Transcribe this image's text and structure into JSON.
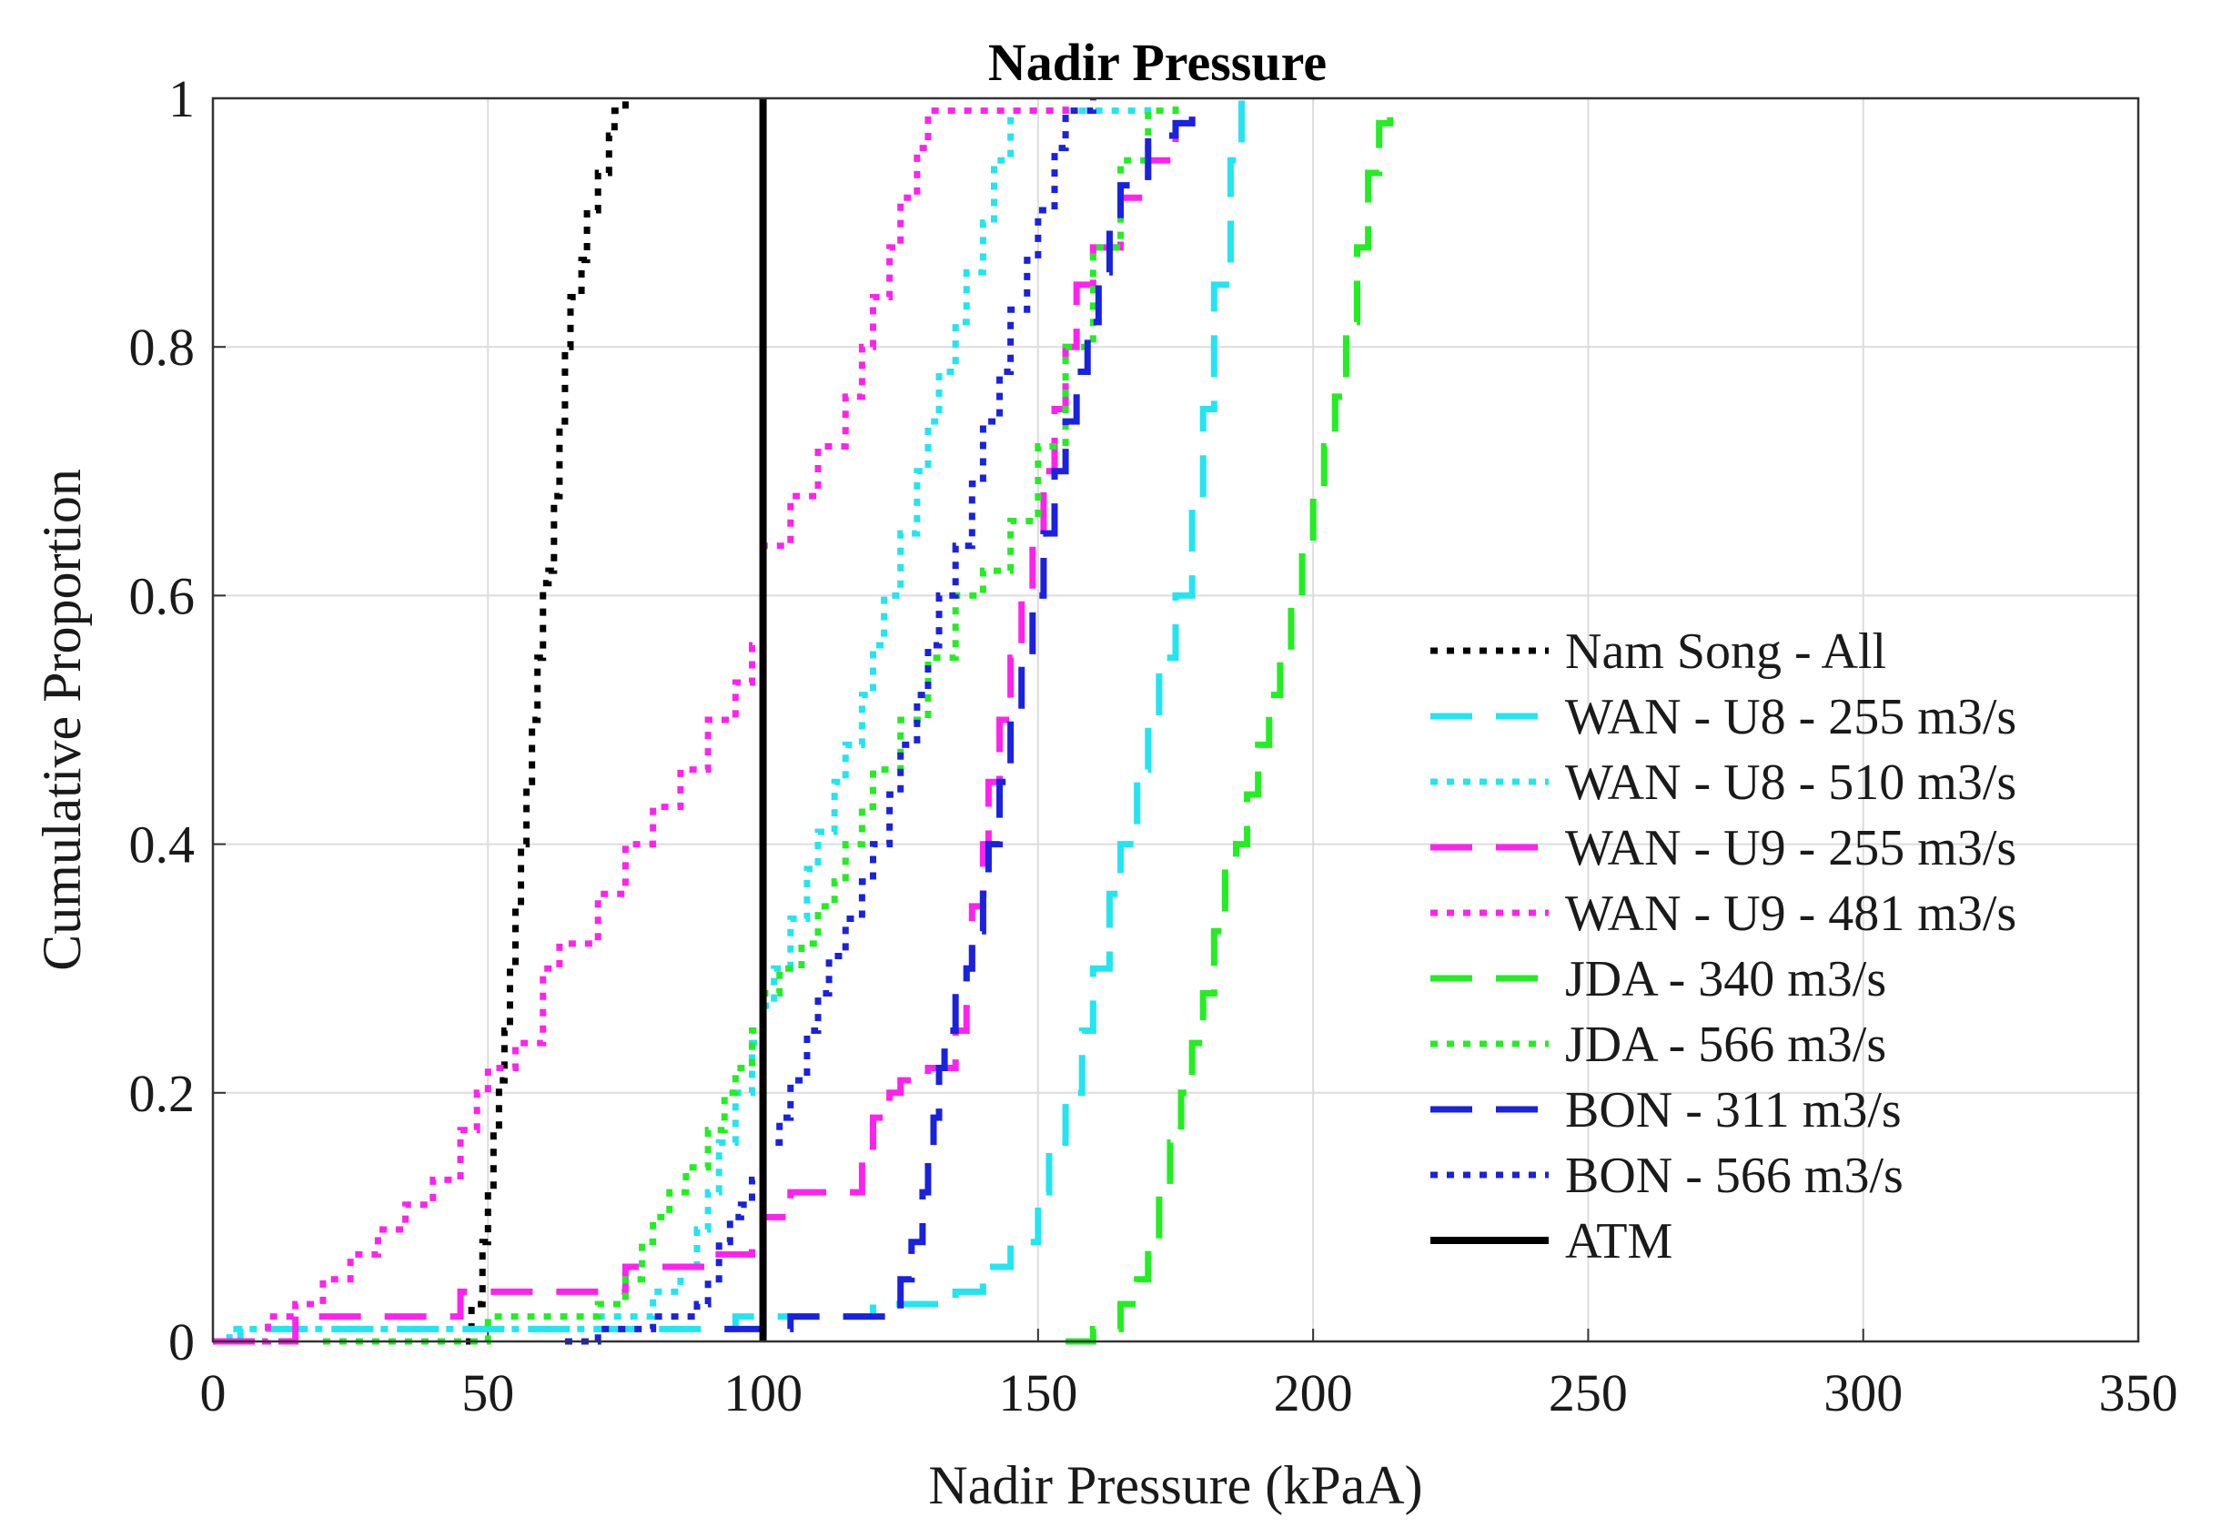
{
  "chart_data": {
    "type": "line",
    "title": "Nadir Pressure",
    "xlabel": "Nadir Pressure (kPaA)",
    "ylabel": "Cumulative Proportion",
    "xlim": [
      0,
      350
    ],
    "ylim": [
      0,
      1
    ],
    "xticks": [
      "0",
      "50",
      "100",
      "150",
      "200",
      "250",
      "300",
      "350"
    ],
    "yticks": [
      "0",
      "0.2",
      "0.4",
      "0.6",
      "0.8",
      "1"
    ],
    "grid": true,
    "legend_position": "right",
    "series": [
      {
        "name": "Nam Song - All",
        "color": "#000000",
        "style": "dotted",
        "x": [
          46,
          47,
          49,
          50,
          51,
          52,
          53,
          54,
          55,
          56,
          57,
          58,
          59,
          60,
          61,
          62,
          63,
          64,
          65,
          67,
          68,
          70,
          72,
          73,
          75
        ],
        "y": [
          0,
          0.03,
          0.08,
          0.12,
          0.17,
          0.21,
          0.25,
          0.3,
          0.35,
          0.4,
          0.45,
          0.5,
          0.55,
          0.61,
          0.62,
          0.68,
          0.74,
          0.8,
          0.84,
          0.87,
          0.91,
          0.94,
          0.97,
          0.99,
          1.0
        ]
      },
      {
        "name": "WAN - U8 - 255 m3/s",
        "color": "#22e5f2",
        "style": "dashed",
        "x": [
          0,
          5,
          10,
          30,
          60,
          90,
          95,
          120,
          130,
          135,
          140,
          141,
          145,
          150,
          152,
          155,
          158,
          160,
          163,
          165,
          168,
          170,
          172,
          175,
          178,
          180,
          182,
          185,
          187
        ],
        "y": [
          0,
          0.01,
          0.01,
          0.01,
          0.01,
          0.01,
          0.02,
          0.03,
          0.03,
          0.04,
          0.06,
          0.06,
          0.08,
          0.12,
          0.16,
          0.2,
          0.25,
          0.3,
          0.36,
          0.4,
          0.46,
          0.5,
          0.55,
          0.6,
          0.67,
          0.75,
          0.85,
          0.95,
          1.0
        ]
      },
      {
        "name": "WAN - U8 - 510 m3/s",
        "color": "#22e5f2",
        "style": "dotted",
        "x": [
          0,
          3,
          70,
          80,
          85,
          88,
          90,
          92,
          95,
          98,
          100,
          102,
          105,
          108,
          110,
          113,
          115,
          118,
          120,
          122,
          125,
          128,
          130,
          132,
          135,
          137,
          140,
          142,
          145,
          155,
          165,
          170
        ],
        "y": [
          0,
          0.01,
          0.02,
          0.04,
          0.06,
          0.09,
          0.12,
          0.16,
          0.2,
          0.24,
          0.27,
          0.3,
          0.34,
          0.38,
          0.41,
          0.45,
          0.48,
          0.52,
          0.56,
          0.6,
          0.65,
          0.7,
          0.74,
          0.78,
          0.82,
          0.86,
          0.9,
          0.95,
          0.99,
          0.99,
          0.99,
          1.0
        ]
      },
      {
        "name": "WAN - U9 - 255 m3/s",
        "color": "#ff22ee",
        "style": "dashed",
        "x": [
          0,
          15,
          45,
          75,
          90,
          98,
          100,
          105,
          110,
          115,
          118,
          120,
          123,
          125,
          130,
          133,
          135,
          137,
          138,
          140,
          141,
          143,
          145,
          147,
          149,
          151,
          153,
          155,
          157,
          160,
          165,
          170,
          175,
          178
        ],
        "y": [
          0,
          0.02,
          0.04,
          0.06,
          0.07,
          0.08,
          0.1,
          0.12,
          0.12,
          0.12,
          0.15,
          0.18,
          0.2,
          0.21,
          0.22,
          0.22,
          0.25,
          0.3,
          0.35,
          0.4,
          0.45,
          0.5,
          0.55,
          0.6,
          0.65,
          0.7,
          0.75,
          0.8,
          0.85,
          0.88,
          0.92,
          0.95,
          0.98,
          1.0
        ]
      },
      {
        "name": "WAN - U9 - 481 m3/s",
        "color": "#ff22ee",
        "style": "dotted",
        "x": [
          0,
          10,
          15,
          20,
          25,
          30,
          35,
          40,
          45,
          48,
          50,
          55,
          60,
          63,
          65,
          70,
          75,
          80,
          85,
          90,
          95,
          98,
          100,
          105,
          110,
          115,
          118,
          120,
          123,
          125,
          128,
          130,
          140,
          150,
          155
        ],
        "y": [
          0,
          0.02,
          0.03,
          0.05,
          0.07,
          0.09,
          0.11,
          0.13,
          0.17,
          0.2,
          0.22,
          0.24,
          0.3,
          0.32,
          0.32,
          0.36,
          0.4,
          0.43,
          0.46,
          0.5,
          0.53,
          0.56,
          0.64,
          0.68,
          0.72,
          0.76,
          0.8,
          0.84,
          0.88,
          0.92,
          0.96,
          0.99,
          0.99,
          0.99,
          1.0
        ]
      },
      {
        "name": "JDA - 340 m3/s",
        "color": "#22ee22",
        "style": "dashed",
        "x": [
          155,
          160,
          165,
          168,
          170,
          172,
          174,
          176,
          178,
          180,
          182,
          184,
          186,
          188,
          190,
          192,
          194,
          196,
          198,
          200,
          202,
          204,
          206,
          208,
          210,
          212,
          214
        ],
        "y": [
          0,
          0.01,
          0.03,
          0.05,
          0.08,
          0.12,
          0.16,
          0.2,
          0.24,
          0.28,
          0.33,
          0.38,
          0.4,
          0.44,
          0.48,
          0.52,
          0.55,
          0.6,
          0.64,
          0.68,
          0.72,
          0.76,
          0.82,
          0.88,
          0.94,
          0.98,
          1.0
        ]
      },
      {
        "name": "JDA - 566 m3/s",
        "color": "#22ee22",
        "style": "dotted",
        "x": [
          20,
          50,
          70,
          75,
          78,
          80,
          83,
          86,
          90,
          93,
          95,
          98,
          100,
          103,
          107,
          110,
          113,
          115,
          118,
          120,
          125,
          130,
          135,
          140,
          145,
          150,
          155,
          160,
          165,
          170,
          175
        ],
        "y": [
          0,
          0.02,
          0.03,
          0.05,
          0.08,
          0.1,
          0.12,
          0.14,
          0.17,
          0.2,
          0.22,
          0.25,
          0.28,
          0.3,
          0.32,
          0.35,
          0.37,
          0.4,
          0.43,
          0.46,
          0.5,
          0.55,
          0.6,
          0.62,
          0.66,
          0.72,
          0.8,
          0.88,
          0.95,
          0.99,
          1.0
        ]
      },
      {
        "name": "BON - 311 m3/s",
        "color": "#1a22dd",
        "style": "dashed",
        "x": [
          93,
          105,
          115,
          123,
          125,
          127,
          129,
          130,
          131,
          132,
          133,
          135,
          137,
          138,
          140,
          141,
          143,
          145,
          147,
          149,
          151,
          153,
          155,
          157,
          159,
          161,
          163,
          165,
          170,
          175,
          178
        ],
        "y": [
          0.01,
          0.02,
          0.02,
          0.02,
          0.05,
          0.08,
          0.12,
          0.15,
          0.18,
          0.22,
          0.25,
          0.28,
          0.3,
          0.33,
          0.36,
          0.4,
          0.45,
          0.5,
          0.55,
          0.6,
          0.65,
          0.7,
          0.74,
          0.78,
          0.82,
          0.86,
          0.9,
          0.93,
          0.97,
          0.98,
          1.0
        ]
      },
      {
        "name": "BON - 566 m3/s",
        "color": "#1a22dd",
        "style": "dotted",
        "x": [
          64,
          70,
          80,
          88,
          90,
          92,
          94,
          96,
          98,
          100,
          103,
          105,
          108,
          110,
          112,
          115,
          118,
          120,
          123,
          125,
          128,
          130,
          132,
          135,
          138,
          140,
          143,
          145,
          148,
          150,
          153,
          155,
          160
        ],
        "y": [
          0,
          0.01,
          0.02,
          0.03,
          0.05,
          0.08,
          0.1,
          0.11,
          0.13,
          0.16,
          0.18,
          0.21,
          0.25,
          0.28,
          0.31,
          0.34,
          0.37,
          0.4,
          0.44,
          0.48,
          0.52,
          0.56,
          0.6,
          0.64,
          0.69,
          0.74,
          0.78,
          0.83,
          0.87,
          0.91,
          0.96,
          0.99,
          1.0
        ]
      },
      {
        "name": "ATM",
        "color": "#000000",
        "style": "solid",
        "x": [
          100,
          100
        ],
        "y": [
          0,
          1
        ]
      }
    ]
  }
}
